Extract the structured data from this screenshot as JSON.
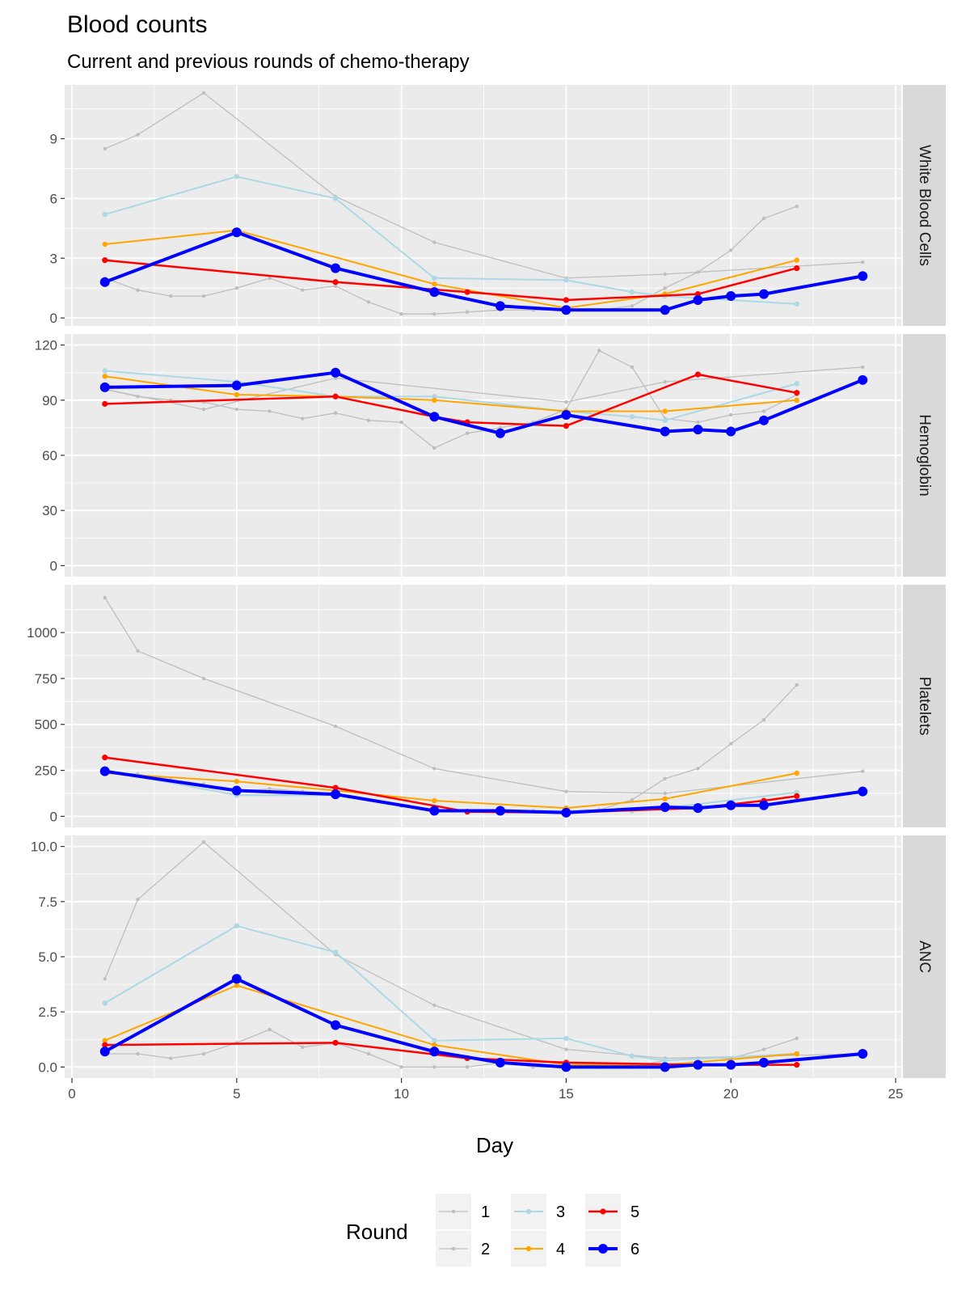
{
  "chart_data": {
    "type": "line",
    "title": "Blood counts",
    "subtitle": "Current and previous rounds of chemo-therapy",
    "xlabel": "Day",
    "xlim": [
      0,
      25
    ],
    "x_ticks": [
      0,
      5,
      10,
      15,
      20,
      25
    ],
    "grid": true,
    "legend": {
      "title": "Round",
      "position": "bottom",
      "entries": [
        "1",
        "2",
        "3",
        "4",
        "5",
        "6"
      ]
    },
    "colors": {
      "1": "#bebebe",
      "2": "#bebebe",
      "3": "#add8e6",
      "4": "#ffa500",
      "5": "#ff0000",
      "6": "#0000ff",
      "panel_bg": "#ebebeb",
      "strip_bg": "#d9d9d9",
      "grid": "#ffffff",
      "tick_text": "#4d4d4d"
    },
    "panels": [
      {
        "name": "White Blood Cells",
        "ylim": [
          -0.4,
          11.7
        ],
        "y_ticks": [
          0,
          3,
          6,
          9
        ],
        "y_tick_labels": [
          "0",
          "3",
          "6",
          "9"
        ],
        "series": [
          {
            "name": "1",
            "x": [
              1,
              2,
              3,
              4,
              5,
              6,
              7,
              8,
              9,
              10,
              11,
              12,
              13,
              14,
              15,
              16,
              17,
              18,
              19,
              20,
              21,
              22
            ],
            "y": [
              2.0,
              1.4,
              1.1,
              1.1,
              1.5,
              2.0,
              1.4,
              1.6,
              0.8,
              0.2,
              0.2,
              0.3,
              0.4,
              0.4,
              0.4,
              0.4,
              0.6,
              1.5,
              2.3,
              3.4,
              5.0,
              5.6
            ]
          },
          {
            "name": "2",
            "x": [
              1,
              2,
              4,
              8,
              11,
              15,
              18,
              24
            ],
            "y": [
              8.5,
              9.2,
              11.3,
              6.1,
              3.8,
              2.0,
              2.2,
              2.8
            ]
          },
          {
            "name": "3",
            "x": [
              1,
              5,
              8,
              11,
              15,
              17,
              18,
              22
            ],
            "y": [
              5.2,
              7.1,
              6.0,
              2.0,
              1.9,
              1.3,
              1.1,
              0.7
            ]
          },
          {
            "name": "4",
            "x": [
              1,
              5,
              11,
              15,
              18,
              22
            ],
            "y": [
              3.7,
              4.4,
              1.7,
              0.5,
              1.2,
              2.9
            ]
          },
          {
            "name": "5",
            "x": [
              1,
              8,
              12,
              15,
              19,
              22
            ],
            "y": [
              2.9,
              1.8,
              1.3,
              0.9,
              1.2,
              2.5
            ]
          },
          {
            "name": "6",
            "x": [
              1,
              5,
              8,
              11,
              13,
              15,
              18,
              19,
              20,
              21,
              24
            ],
            "y": [
              1.8,
              4.3,
              2.5,
              1.3,
              0.6,
              0.4,
              0.4,
              0.9,
              1.1,
              1.2,
              2.1
            ]
          }
        ]
      },
      {
        "name": "Hemoglobin",
        "ylim": [
          -6,
          126
        ],
        "y_ticks": [
          0,
          30,
          60,
          90,
          120
        ],
        "y_tick_labels": [
          "0",
          "30",
          "60",
          "90",
          "120"
        ],
        "series": [
          {
            "name": "1",
            "x": [
              1,
              2,
              3,
              4,
              5,
              6,
              7,
              8,
              9,
              10,
              11,
              12,
              13,
              14,
              15,
              16,
              17,
              18,
              19,
              20,
              21,
              22
            ],
            "y": [
              96,
              92,
              90,
              89,
              85,
              84,
              80,
              83,
              79,
              78,
              64,
              72,
              75,
              78,
              85,
              117,
              108,
              80,
              78,
              82,
              84,
              93
            ]
          },
          {
            "name": "2",
            "x": [
              1,
              4,
              8,
              15,
              18,
              24
            ],
            "y": [
              96,
              85,
              102,
              89,
              100,
              108
            ]
          },
          {
            "name": "3",
            "x": [
              1,
              5,
              8,
              11,
              15,
              17,
              18,
              22
            ],
            "y": [
              106,
              100,
              92,
              92,
              84,
              81,
              79,
              99
            ]
          },
          {
            "name": "4",
            "x": [
              1,
              5,
              8,
              11,
              15,
              18,
              22
            ],
            "y": [
              103,
              93,
              92,
              90,
              84,
              84,
              90
            ]
          },
          {
            "name": "5",
            "x": [
              1,
              8,
              11,
              12,
              15,
              19,
              22
            ],
            "y": [
              88,
              92,
              81,
              78,
              76,
              104,
              94
            ]
          },
          {
            "name": "6",
            "x": [
              1,
              5,
              8,
              11,
              13,
              15,
              18,
              19,
              20,
              21,
              24
            ],
            "y": [
              97,
              98,
              105,
              81,
              72,
              82,
              73,
              74,
              73,
              79,
              101
            ]
          }
        ]
      },
      {
        "name": "Platelets",
        "ylim": [
          -60,
          1260
        ],
        "y_ticks": [
          0,
          250,
          500,
          750,
          1000
        ],
        "y_tick_labels": [
          "0",
          "250",
          "500",
          "750",
          "1000"
        ],
        "series": [
          {
            "name": "1",
            "x": [
              1,
              2,
              3,
              4,
              5,
              6,
              7,
              8,
              9,
              10,
              11,
              12,
              13,
              14,
              15,
              16,
              17,
              18,
              19,
              20,
              21,
              22
            ],
            "y": [
              240,
              230,
              200,
              175,
              130,
              150,
              135,
              125,
              90,
              55,
              30,
              25,
              25,
              30,
              30,
              35,
              90,
              205,
              260,
              395,
              525,
              715
            ]
          },
          {
            "name": "2",
            "x": [
              1,
              2,
              4,
              8,
              11,
              15,
              18,
              24
            ],
            "y": [
              1190,
              900,
              750,
              490,
              260,
              135,
              125,
              245
            ]
          },
          {
            "name": "3",
            "x": [
              1,
              5,
              8,
              11,
              15,
              17,
              18,
              22
            ],
            "y": [
              250,
              115,
              115,
              30,
              30,
              30,
              45,
              130
            ]
          },
          {
            "name": "4",
            "x": [
              1,
              5,
              8,
              11,
              15,
              18,
              22
            ],
            "y": [
              235,
              190,
              140,
              85,
              45,
              95,
              235
            ]
          },
          {
            "name": "5",
            "x": [
              1,
              8,
              12,
              15,
              19,
              21,
              22
            ],
            "y": [
              320,
              155,
              25,
              20,
              45,
              85,
              110
            ]
          },
          {
            "name": "6",
            "x": [
              1,
              5,
              8,
              11,
              13,
              15,
              18,
              19,
              20,
              21,
              24
            ],
            "y": [
              245,
              140,
              120,
              30,
              30,
              20,
              50,
              45,
              60,
              60,
              135
            ]
          }
        ]
      },
      {
        "name": "ANC",
        "ylim": [
          -0.5,
          10.5
        ],
        "y_ticks": [
          0,
          2.5,
          5,
          7.5,
          10
        ],
        "y_tick_labels": [
          "0.0",
          "2.5",
          "5.0",
          "7.5",
          "10.0"
        ],
        "series": [
          {
            "name": "1",
            "x": [
              1,
              2,
              3,
              4,
              5,
              6,
              7,
              8,
              9,
              10,
              11,
              12,
              13,
              14,
              15,
              16,
              17,
              18,
              19,
              20,
              21,
              22
            ],
            "y": [
              0.6,
              0.6,
              0.4,
              0.6,
              1.1,
              1.7,
              0.9,
              1.1,
              0.6,
              0.0,
              0.0,
              0.0,
              0.2,
              0.0,
              0.0,
              0.0,
              0.0,
              0.3,
              0.4,
              0.4,
              0.8,
              1.3
            ]
          },
          {
            "name": "2",
            "x": [
              1,
              2,
              4,
              8,
              11,
              15,
              18,
              24
            ],
            "y": [
              4.0,
              7.6,
              10.2,
              5.1,
              2.8,
              0.8,
              0.4,
              0.6
            ]
          },
          {
            "name": "3",
            "x": [
              1,
              5,
              8,
              11,
              15,
              17,
              18,
              22
            ],
            "y": [
              2.9,
              6.4,
              5.2,
              1.2,
              1.3,
              0.5,
              0.3,
              0.6
            ]
          },
          {
            "name": "4",
            "x": [
              1,
              5,
              11,
              15,
              18,
              22
            ],
            "y": [
              1.2,
              3.7,
              1.0,
              0.1,
              0.1,
              0.6
            ]
          },
          {
            "name": "5",
            "x": [
              1,
              8,
              12,
              15,
              19,
              22
            ],
            "y": [
              1.0,
              1.1,
              0.4,
              0.2,
              0.1,
              0.1
            ]
          },
          {
            "name": "6",
            "x": [
              1,
              5,
              8,
              11,
              13,
              15,
              18,
              19,
              20,
              21,
              24
            ],
            "y": [
              0.7,
              4.0,
              1.9,
              0.7,
              0.2,
              0.0,
              0.0,
              0.1,
              0.1,
              0.2,
              0.6
            ]
          }
        ]
      }
    ]
  }
}
